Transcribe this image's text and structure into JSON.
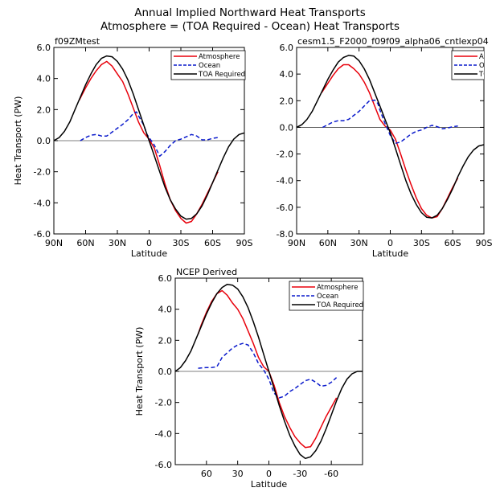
{
  "figure": {
    "title_line1": "Annual Implied Northward Heat Transports",
    "title_line2": "Atmosphere = (TOA Required - Ocean) Heat Transports"
  },
  "chart_data": [
    {
      "type": "line",
      "title": "f09ZMtest",
      "xlabel": "Latitude",
      "ylabel": "Heat Transport (PW)",
      "xlim": [
        90,
        -90
      ],
      "ylim": [
        -6,
        6
      ],
      "xticks": [
        90,
        60,
        30,
        0,
        -30,
        -60,
        -90
      ],
      "xtick_labels": [
        "90N",
        "60N",
        "30N",
        "0",
        "30S",
        "60S",
        "90S"
      ],
      "yticks": [
        -6,
        -4,
        -2,
        0,
        2,
        4,
        6
      ],
      "ytick_labels": [
        "-6.0",
        "-4.0",
        "-2.0",
        "0.0",
        "2.0",
        "4.0",
        "6.0"
      ],
      "series": [
        {
          "name": "Atmosphere",
          "color": "#e8000b",
          "dash": "",
          "x": [
            66,
            60,
            55,
            50,
            45,
            40,
            35,
            30,
            25,
            20,
            15,
            10,
            5,
            0,
            -5,
            -10,
            -15,
            -20,
            -25,
            -30,
            -35,
            -40,
            -45,
            -50,
            -55,
            -60,
            -65
          ],
          "y": [
            2.6,
            3.4,
            4.0,
            4.5,
            4.9,
            5.1,
            4.8,
            4.3,
            3.8,
            3.0,
            2.1,
            1.2,
            0.5,
            0.1,
            -0.5,
            -1.6,
            -2.8,
            -3.8,
            -4.5,
            -5.0,
            -5.3,
            -5.2,
            -4.7,
            -4.1,
            -3.4,
            -2.7,
            -2.0
          ]
        },
        {
          "name": "Ocean",
          "color": "#0a1acc",
          "dash": "5,3",
          "x": [
            65,
            60,
            55,
            50,
            45,
            40,
            35,
            30,
            25,
            20,
            15,
            12,
            10,
            5,
            2,
            0,
            -5,
            -10,
            -15,
            -20,
            -25,
            -30,
            -35,
            -40,
            -45,
            -50,
            -55,
            -60,
            -65
          ],
          "y": [
            0.0,
            0.2,
            0.35,
            0.4,
            0.3,
            0.3,
            0.55,
            0.8,
            1.05,
            1.35,
            1.75,
            1.85,
            1.6,
            1.0,
            0.4,
            0.2,
            -0.3,
            -1.0,
            -0.7,
            -0.3,
            0.0,
            0.1,
            0.25,
            0.4,
            0.3,
            0.05,
            0.05,
            0.15,
            0.2
          ]
        },
        {
          "name": "TOA Required",
          "color": "#000000",
          "dash": "",
          "x": [
            90,
            85,
            80,
            75,
            70,
            65,
            60,
            55,
            50,
            45,
            40,
            35,
            30,
            25,
            20,
            15,
            10,
            5,
            0,
            -5,
            -10,
            -15,
            -20,
            -25,
            -30,
            -35,
            -40,
            -45,
            -50,
            -55,
            -60,
            -65,
            -70,
            -75,
            -80,
            -85,
            -90
          ],
          "y": [
            0.0,
            0.2,
            0.6,
            1.2,
            2.0,
            2.8,
            3.6,
            4.3,
            4.9,
            5.3,
            5.45,
            5.4,
            5.1,
            4.6,
            3.9,
            3.0,
            2.0,
            1.0,
            0.0,
            -1.0,
            -2.0,
            -3.0,
            -3.8,
            -4.4,
            -4.85,
            -5.05,
            -5.0,
            -4.7,
            -4.2,
            -3.5,
            -2.7,
            -1.9,
            -1.1,
            -0.4,
            0.1,
            0.4,
            0.5
          ]
        }
      ]
    },
    {
      "type": "line",
      "title": "cesm1.5_F2000_f09f09_alpha06_cntlexp04",
      "xlabel": "Latitude",
      "ylabel": "",
      "xlim": [
        90,
        -90
      ],
      "ylim": [
        -8,
        6
      ],
      "xticks": [
        90,
        60,
        30,
        0,
        -30,
        -60,
        -90
      ],
      "xtick_labels": [
        "90N",
        "60N",
        "30N",
        "0",
        "30S",
        "60S",
        "90S"
      ],
      "yticks": [
        -8,
        -6,
        -4,
        -2,
        0,
        2,
        4,
        6
      ],
      "ytick_labels": [
        "-8.0",
        "-6.0",
        "-4.0",
        "-2.0",
        "0.0",
        "2.0",
        "4.0",
        "6.0"
      ],
      "series": [
        {
          "name": "Atmosphere",
          "color": "#e8000b",
          "dash": "",
          "x": [
            66,
            60,
            55,
            50,
            45,
            40,
            35,
            30,
            25,
            20,
            15,
            10,
            5,
            0,
            -5,
            -10,
            -15,
            -20,
            -25,
            -30,
            -35,
            -40,
            -45,
            -50,
            -55,
            -60,
            -65
          ],
          "y": [
            2.6,
            3.3,
            3.9,
            4.4,
            4.7,
            4.7,
            4.4,
            4.0,
            3.4,
            2.6,
            1.6,
            0.6,
            0.1,
            -0.2,
            -0.9,
            -2.0,
            -3.2,
            -4.3,
            -5.3,
            -6.1,
            -6.6,
            -6.8,
            -6.7,
            -6.1,
            -5.3,
            -4.5,
            -3.8
          ]
        },
        {
          "name": "Ocean",
          "color": "#0a1acc",
          "dash": "5,3",
          "x": [
            65,
            60,
            55,
            50,
            45,
            40,
            35,
            30,
            25,
            20,
            15,
            12,
            10,
            5,
            0,
            -5,
            -10,
            -15,
            -20,
            -25,
            -30,
            -35,
            -40,
            -45,
            -50,
            -55,
            -60,
            -65
          ],
          "y": [
            0.0,
            0.2,
            0.4,
            0.5,
            0.5,
            0.6,
            0.9,
            1.2,
            1.6,
            2.0,
            2.05,
            1.8,
            1.3,
            0.3,
            -0.6,
            -1.2,
            -1.1,
            -0.8,
            -0.5,
            -0.3,
            -0.2,
            0.0,
            0.15,
            0.05,
            -0.1,
            -0.05,
            0.05,
            0.1
          ]
        },
        {
          "name": "TOA Required",
          "color": "#000000",
          "dash": "",
          "x": [
            90,
            85,
            80,
            75,
            70,
            65,
            60,
            55,
            50,
            45,
            40,
            35,
            30,
            25,
            20,
            15,
            10,
            5,
            0,
            -5,
            -10,
            -15,
            -20,
            -25,
            -30,
            -35,
            -40,
            -45,
            -50,
            -55,
            -60,
            -65,
            -70,
            -75,
            -80,
            -85,
            -90
          ],
          "y": [
            0.0,
            0.2,
            0.6,
            1.2,
            2.0,
            2.8,
            3.6,
            4.3,
            4.9,
            5.25,
            5.4,
            5.35,
            5.0,
            4.4,
            3.6,
            2.6,
            1.6,
            0.6,
            -0.4,
            -1.6,
            -2.8,
            -4.0,
            -5.0,
            -5.8,
            -6.4,
            -6.75,
            -6.8,
            -6.6,
            -6.1,
            -5.4,
            -4.6,
            -3.7,
            -2.9,
            -2.2,
            -1.7,
            -1.4,
            -1.3
          ]
        }
      ]
    },
    {
      "type": "line",
      "title": "NCEP Derived",
      "xlabel": "Latitude",
      "ylabel": "Heat Transport (PW)",
      "xlim": [
        90,
        -90
      ],
      "ylim": [
        -6,
        6
      ],
      "xticks": [
        60,
        30,
        0,
        -30,
        -60
      ],
      "xtick_labels": [
        "60",
        "30",
        "0",
        "-30",
        "-60"
      ],
      "yticks": [
        -6,
        -4,
        -2,
        0,
        2,
        4,
        6
      ],
      "ytick_labels": [
        "-6.0",
        "-4.0",
        "-2.0",
        "0.0",
        "2.0",
        "4.0",
        "6.0"
      ],
      "series": [
        {
          "name": "Atmosphere",
          "color": "#e8000b",
          "dash": "",
          "x": [
            68,
            65,
            60,
            55,
            50,
            45,
            40,
            35,
            30,
            25,
            20,
            15,
            10,
            5,
            0,
            -5,
            -10,
            -15,
            -20,
            -25,
            -30,
            -35,
            -40,
            -45,
            -50,
            -55,
            -60,
            -65
          ],
          "y": [
            2.4,
            3.0,
            3.8,
            4.5,
            5.0,
            5.2,
            4.9,
            4.4,
            4.0,
            3.4,
            2.6,
            1.8,
            0.9,
            0.3,
            0.0,
            -0.9,
            -2.0,
            -2.9,
            -3.6,
            -4.2,
            -4.6,
            -4.9,
            -4.85,
            -4.3,
            -3.6,
            -2.9,
            -2.3,
            -1.7
          ]
        },
        {
          "name": "Ocean",
          "color": "#0a1acc",
          "dash": "5,3",
          "x": [
            68,
            60,
            55,
            50,
            45,
            40,
            35,
            30,
            25,
            20,
            15,
            10,
            5,
            0,
            -5,
            -10,
            -15,
            -20,
            -25,
            -30,
            -35,
            -40,
            -45,
            -50,
            -55,
            -60,
            -65
          ],
          "y": [
            0.2,
            0.25,
            0.25,
            0.3,
            0.9,
            1.2,
            1.5,
            1.7,
            1.8,
            1.7,
            1.2,
            0.5,
            0.1,
            -0.5,
            -1.4,
            -1.7,
            -1.6,
            -1.3,
            -1.1,
            -0.85,
            -0.6,
            -0.5,
            -0.7,
            -0.95,
            -0.9,
            -0.7,
            -0.4
          ]
        },
        {
          "name": "TOA Required",
          "color": "#000000",
          "dash": "",
          "x": [
            90,
            85,
            80,
            75,
            70,
            65,
            60,
            55,
            50,
            45,
            40,
            35,
            30,
            25,
            20,
            15,
            10,
            5,
            0,
            -5,
            -10,
            -15,
            -20,
            -25,
            -30,
            -35,
            -40,
            -45,
            -50,
            -55,
            -60,
            -65,
            -70,
            -75,
            -80,
            -85,
            -90
          ],
          "y": [
            0.0,
            0.25,
            0.7,
            1.3,
            2.1,
            2.9,
            3.7,
            4.4,
            5.0,
            5.4,
            5.6,
            5.55,
            5.3,
            4.8,
            4.1,
            3.2,
            2.2,
            1.1,
            0.0,
            -1.1,
            -2.2,
            -3.2,
            -4.1,
            -4.8,
            -5.35,
            -5.6,
            -5.5,
            -5.1,
            -4.5,
            -3.7,
            -2.8,
            -1.9,
            -1.1,
            -0.5,
            -0.15,
            0.0,
            0.0
          ]
        }
      ]
    }
  ]
}
